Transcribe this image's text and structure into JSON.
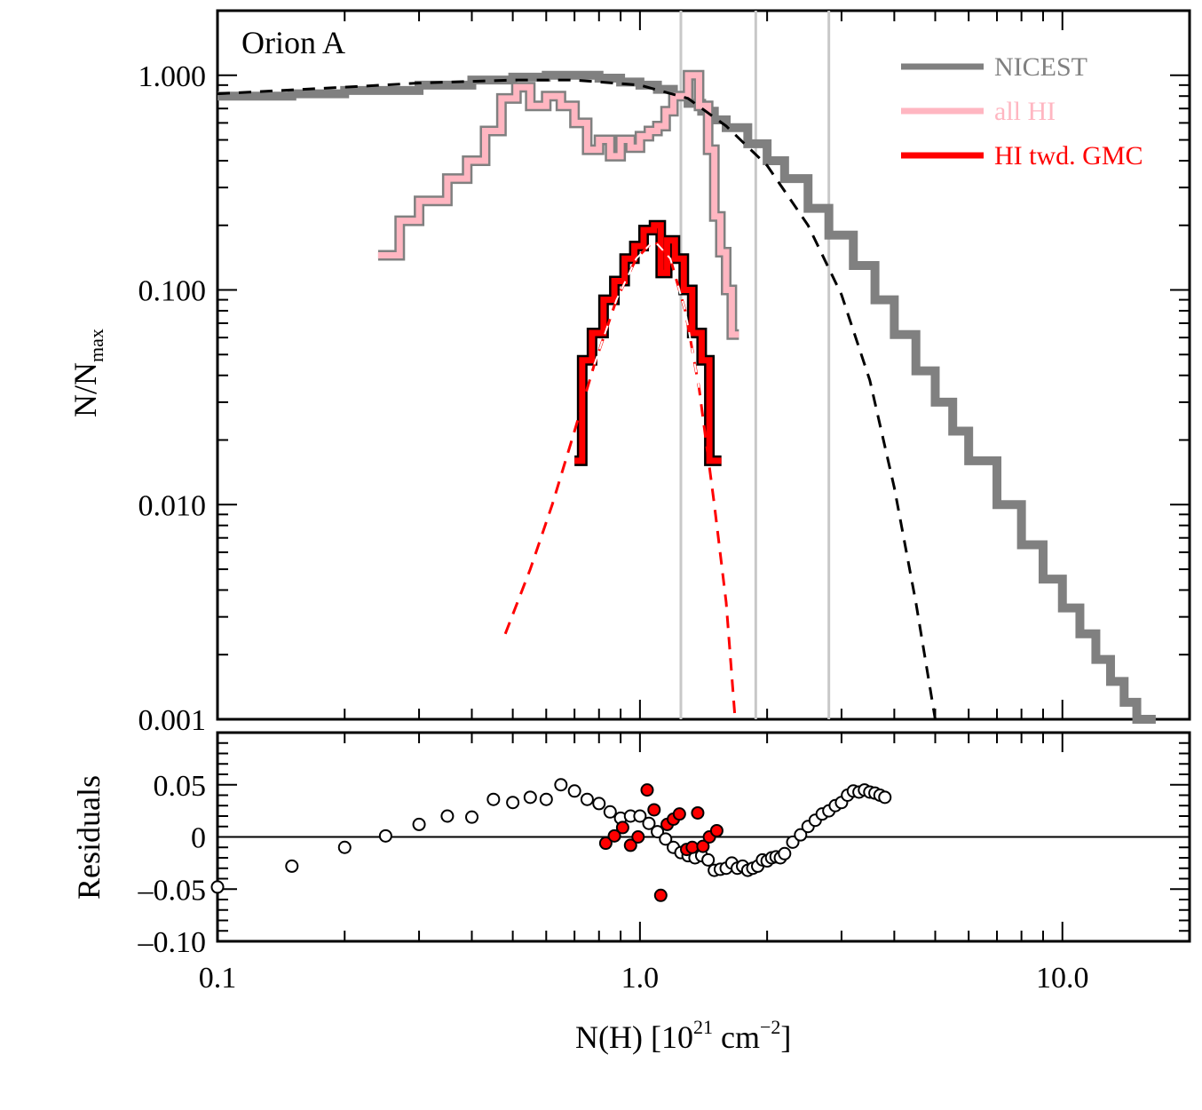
{
  "chart_data": [
    {
      "type": "line",
      "panel": "top",
      "title": "Orion A",
      "xlabel": "N(H) [10^21 cm^-2]",
      "xscale": "log",
      "xlim": [
        0.1,
        20
      ],
      "ylabel": "N/N_max",
      "yscale": "log",
      "ylim": [
        0.001,
        2.0
      ],
      "x_tick_labels": [
        "0.1",
        "1.0",
        "10.0"
      ],
      "x_ticks": [
        0.1,
        1.0,
        10.0
      ],
      "y_tick_labels": [
        "0.001",
        "0.010",
        "0.100",
        "1.000"
      ],
      "y_ticks": [
        0.001,
        0.01,
        0.1,
        1.0
      ],
      "vertical_lines": [
        1.25,
        1.88,
        2.8
      ],
      "legend": {
        "position": "top-right",
        "entries": [
          {
            "label": "NICEST",
            "color": "#808080"
          },
          {
            "label": "all HI",
            "color": "#ffb6c1"
          },
          {
            "label": "HI twd. GMC",
            "color": "#ff0000"
          }
        ]
      },
      "series": [
        {
          "name": "NICEST",
          "color": "#808080",
          "style": "step",
          "points": [
            [
              0.1,
              0.8
            ],
            [
              0.15,
              0.82
            ],
            [
              0.2,
              0.85
            ],
            [
              0.3,
              0.9
            ],
            [
              0.4,
              0.95
            ],
            [
              0.5,
              0.98
            ],
            [
              0.6,
              1.0
            ],
            [
              0.7,
              1.0
            ],
            [
              0.8,
              0.97
            ],
            [
              0.9,
              0.93
            ],
            [
              1.0,
              0.9
            ],
            [
              1.1,
              0.86
            ],
            [
              1.2,
              0.8
            ],
            [
              1.3,
              0.74
            ],
            [
              1.4,
              0.68
            ],
            [
              1.5,
              0.62
            ],
            [
              1.6,
              0.57
            ],
            [
              1.8,
              0.48
            ],
            [
              2.0,
              0.4
            ],
            [
              2.2,
              0.33
            ],
            [
              2.5,
              0.24
            ],
            [
              2.8,
              0.18
            ],
            [
              3.2,
              0.13
            ],
            [
              3.6,
              0.09
            ],
            [
              4.0,
              0.062
            ],
            [
              4.5,
              0.042
            ],
            [
              5.0,
              0.03
            ],
            [
              5.5,
              0.022
            ],
            [
              6.0,
              0.016
            ],
            [
              7.0,
              0.01
            ],
            [
              8.0,
              0.0065
            ],
            [
              9.0,
              0.0045
            ],
            [
              10.0,
              0.0033
            ],
            [
              11.0,
              0.0025
            ],
            [
              12.0,
              0.0019
            ],
            [
              13.0,
              0.0015
            ],
            [
              14.0,
              0.0012
            ],
            [
              15.0,
              0.001
            ],
            [
              16.0,
              0.001
            ]
          ]
        },
        {
          "name": "all HI",
          "color": "#ffb6c1",
          "style": "step",
          "points": [
            [
              0.24,
              0.145
            ],
            [
              0.27,
              0.21
            ],
            [
              0.3,
              0.26
            ],
            [
              0.35,
              0.33
            ],
            [
              0.39,
              0.4
            ],
            [
              0.43,
              0.55
            ],
            [
              0.47,
              0.78
            ],
            [
              0.51,
              0.88
            ],
            [
              0.55,
              0.72
            ],
            [
              0.6,
              0.8
            ],
            [
              0.65,
              0.72
            ],
            [
              0.7,
              0.6
            ],
            [
              0.75,
              0.45
            ],
            [
              0.8,
              0.5
            ],
            [
              0.85,
              0.42
            ],
            [
              0.9,
              0.5
            ],
            [
              0.95,
              0.46
            ],
            [
              1.0,
              0.52
            ],
            [
              1.05,
              0.55
            ],
            [
              1.1,
              0.58
            ],
            [
              1.15,
              0.68
            ],
            [
              1.2,
              0.8
            ],
            [
              1.3,
              1.0
            ],
            [
              1.38,
              0.72
            ],
            [
              1.45,
              0.45
            ],
            [
              1.5,
              0.22
            ],
            [
              1.55,
              0.15
            ],
            [
              1.6,
              0.1
            ],
            [
              1.65,
              0.062
            ]
          ]
        },
        {
          "name": "HI twd. GMC",
          "color": "#ff0000",
          "style": "step",
          "points": [
            [
              0.7,
              0.016
            ],
            [
              0.73,
              0.047
            ],
            [
              0.77,
              0.063
            ],
            [
              0.82,
              0.09
            ],
            [
              0.87,
              0.11
            ],
            [
              0.92,
              0.14
            ],
            [
              0.97,
              0.16
            ],
            [
              1.02,
              0.19
            ],
            [
              1.08,
              0.2
            ],
            [
              1.12,
              0.12
            ],
            [
              1.16,
              0.17
            ],
            [
              1.21,
              0.14
            ],
            [
              1.27,
              0.1
            ],
            [
              1.33,
              0.063
            ],
            [
              1.4,
              0.047
            ],
            [
              1.46,
              0.016
            ],
            [
              1.5,
              0.016
            ]
          ]
        },
        {
          "name": "NICEST fit",
          "color": "#000000",
          "style": "dashed",
          "points": [
            [
              0.1,
              0.82
            ],
            [
              0.2,
              0.88
            ],
            [
              0.3,
              0.92
            ],
            [
              0.5,
              0.95
            ],
            [
              0.7,
              0.95
            ],
            [
              1.0,
              0.9
            ],
            [
              1.3,
              0.78
            ],
            [
              1.6,
              0.58
            ],
            [
              2.0,
              0.38
            ],
            [
              2.5,
              0.2
            ],
            [
              3.0,
              0.095
            ],
            [
              3.5,
              0.038
            ],
            [
              4.0,
              0.012
            ],
            [
              4.5,
              0.0035
            ],
            [
              5.0,
              0.001
            ]
          ]
        },
        {
          "name": "HI twd. GMC fit",
          "color": "#ff0000",
          "style": "dashed",
          "points": [
            [
              0.48,
              0.0025
            ],
            [
              0.55,
              0.005
            ],
            [
              0.62,
              0.01
            ],
            [
              0.7,
              0.022
            ],
            [
              0.78,
              0.045
            ],
            [
              0.88,
              0.09
            ],
            [
              0.98,
              0.14
            ],
            [
              1.08,
              0.17
            ],
            [
              1.18,
              0.14
            ],
            [
              1.28,
              0.08
            ],
            [
              1.38,
              0.035
            ],
            [
              1.5,
              0.01
            ],
            [
              1.6,
              0.0035
            ],
            [
              1.68,
              0.001
            ]
          ]
        }
      ]
    },
    {
      "type": "scatter",
      "panel": "bottom",
      "xlabel": "N(H) [10^21 cm^-2]",
      "xscale": "log",
      "xlim": [
        0.1,
        20
      ],
      "ylabel": "Residuals",
      "ylim": [
        -0.1,
        0.1
      ],
      "y_ticks": [
        -0.1,
        -0.05,
        0,
        0.05
      ],
      "y_tick_labels": [
        "–0.10",
        "–0.05",
        "0",
        "0.05"
      ],
      "reference_line": 0,
      "series": [
        {
          "name": "NICEST residuals",
          "marker": "open-circle",
          "color": "#000000",
          "points": [
            [
              0.1,
              -0.048
            ],
            [
              0.15,
              -0.028
            ],
            [
              0.2,
              -0.01
            ],
            [
              0.25,
              0.001
            ],
            [
              0.3,
              0.012
            ],
            [
              0.35,
              0.02
            ],
            [
              0.4,
              0.019
            ],
            [
              0.45,
              0.036
            ],
            [
              0.5,
              0.033
            ],
            [
              0.55,
              0.038
            ],
            [
              0.6,
              0.036
            ],
            [
              0.65,
              0.05
            ],
            [
              0.7,
              0.044
            ],
            [
              0.75,
              0.036
            ],
            [
              0.8,
              0.032
            ],
            [
              0.85,
              0.024
            ],
            [
              0.9,
              0.018
            ],
            [
              0.95,
              0.02
            ],
            [
              1.0,
              0.02
            ],
            [
              1.05,
              0.013
            ],
            [
              1.1,
              0.005
            ],
            [
              1.15,
              -0.002
            ],
            [
              1.2,
              -0.01
            ],
            [
              1.25,
              -0.015
            ],
            [
              1.3,
              -0.018
            ],
            [
              1.35,
              -0.02
            ],
            [
              1.4,
              -0.018
            ],
            [
              1.45,
              -0.022
            ],
            [
              1.5,
              -0.032
            ],
            [
              1.55,
              -0.031
            ],
            [
              1.6,
              -0.03
            ],
            [
              1.65,
              -0.025
            ],
            [
              1.7,
              -0.03
            ],
            [
              1.75,
              -0.028
            ],
            [
              1.8,
              -0.032
            ],
            [
              1.85,
              -0.03
            ],
            [
              1.9,
              -0.028
            ],
            [
              1.95,
              -0.022
            ],
            [
              2.0,
              -0.023
            ],
            [
              2.05,
              -0.02
            ],
            [
              2.1,
              -0.019
            ],
            [
              2.15,
              -0.02
            ],
            [
              2.2,
              -0.016
            ],
            [
              2.3,
              -0.005
            ],
            [
              2.4,
              0.002
            ],
            [
              2.5,
              0.01
            ],
            [
              2.6,
              0.016
            ],
            [
              2.7,
              0.022
            ],
            [
              2.8,
              0.025
            ],
            [
              2.9,
              0.03
            ],
            [
              3.0,
              0.033
            ],
            [
              3.1,
              0.04
            ],
            [
              3.2,
              0.044
            ],
            [
              3.3,
              0.043
            ],
            [
              3.4,
              0.045
            ],
            [
              3.5,
              0.043
            ],
            [
              3.6,
              0.042
            ],
            [
              3.7,
              0.04
            ],
            [
              3.8,
              0.038
            ]
          ]
        },
        {
          "name": "HI twd. GMC residuals",
          "marker": "filled-circle",
          "color": "#ff0000",
          "points": [
            [
              0.83,
              -0.006
            ],
            [
              0.87,
              0.001
            ],
            [
              0.91,
              0.009
            ],
            [
              0.95,
              -0.008
            ],
            [
              0.99,
              0.0
            ],
            [
              1.04,
              0.045
            ],
            [
              1.08,
              0.026
            ],
            [
              1.12,
              -0.056
            ],
            [
              1.16,
              0.012
            ],
            [
              1.2,
              0.017
            ],
            [
              1.24,
              0.022
            ],
            [
              1.29,
              -0.012
            ],
            [
              1.33,
              -0.01
            ],
            [
              1.37,
              0.023
            ],
            [
              1.41,
              -0.009
            ],
            [
              1.46,
              0.0
            ],
            [
              1.52,
              0.006
            ]
          ]
        }
      ]
    }
  ],
  "top_panel": {
    "label": "Orion A",
    "ylabel_main": "N/N",
    "ylabel_sub": "max"
  },
  "bottom_panel": {
    "ylabel": "Residuals"
  },
  "x_axis": {
    "title_prefix": "N(H) [10",
    "title_sup1": "21",
    "title_mid": " cm",
    "title_sup2": "−2",
    "title_suffix": "]"
  }
}
